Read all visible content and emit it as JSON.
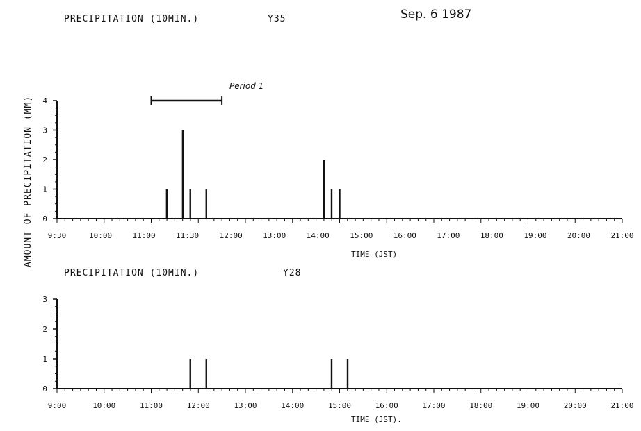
{
  "header": {
    "date": "Sep. 6  1987"
  },
  "ylabel": "AMOUNT OF PRECIPITATION (MM)",
  "annotation": "Period 1",
  "chart_data": [
    {
      "type": "bar",
      "title": "PRECIPITATION (10MIN.)",
      "station": "Y35",
      "xlabel": "TIME (JST)",
      "ylabel": "AMOUNT OF PRECIPITATION (MM)",
      "x_ticks": [
        "9:30",
        "10:00",
        "11:00",
        "11:30",
        "12:00",
        "13:00",
        "14:00",
        "15:00",
        "16:00",
        "17:00",
        "18:00",
        "19:00",
        "20:00",
        "21:00"
      ],
      "y_ticks": [
        "0",
        "1",
        "2",
        "3",
        "4"
      ],
      "ylim": [
        0,
        4
      ],
      "xlim_hours": [
        9,
        21
      ],
      "period": {
        "label": "Period 1",
        "start_hour": 11.0,
        "end_hour": 12.5
      },
      "bars": [
        {
          "hour": 11.33,
          "value": 1
        },
        {
          "hour": 11.67,
          "value": 3
        },
        {
          "hour": 11.83,
          "value": 1
        },
        {
          "hour": 12.17,
          "value": 1
        },
        {
          "hour": 14.67,
          "value": 2
        },
        {
          "hour": 14.83,
          "value": 1
        },
        {
          "hour": 15.0,
          "value": 1
        }
      ]
    },
    {
      "type": "bar",
      "title": "PRECIPITATION (10MIN.)",
      "station": "Y28",
      "xlabel": "TIME (JST).",
      "x_ticks": [
        "9:00",
        "10:00",
        "11:00",
        "12:00",
        "13:00",
        "14:00",
        "15:00",
        "16:00",
        "17:00",
        "18:00",
        "19:00",
        "20:00",
        "21:00"
      ],
      "y_ticks": [
        "0",
        "1",
        "2",
        "3"
      ],
      "ylim": [
        0,
        3
      ],
      "xlim_hours": [
        9,
        21
      ],
      "bars": [
        {
          "hour": 11.83,
          "value": 1
        },
        {
          "hour": 12.17,
          "value": 1
        },
        {
          "hour": 14.83,
          "value": 1
        },
        {
          "hour": 15.17,
          "value": 1
        }
      ]
    }
  ]
}
